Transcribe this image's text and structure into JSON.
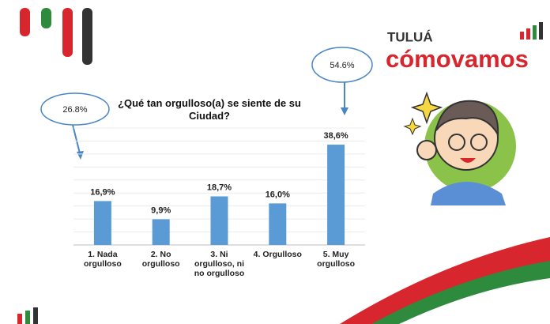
{
  "brand": {
    "city": "TULUÁ",
    "name": "cómovamos"
  },
  "chart_data": {
    "type": "bar",
    "title": "¿Qué tan orgulloso(a) se siente de su Ciudad?",
    "categories": [
      "1. Nada orgulloso",
      "2. No orgulloso",
      "3. Ni orgulloso, ni no orgulloso",
      "4. Orgulloso",
      "5. Muy orgulloso"
    ],
    "values": [
      16.9,
      9.9,
      18.7,
      16.0,
      38.6
    ],
    "value_labels": [
      "16,9%",
      "9,9%",
      "18,7%",
      "16,0%",
      "38,6%"
    ],
    "color": "#5b9bd5",
    "ylim": [
      0,
      45
    ],
    "yticks": [
      0,
      5,
      10,
      15,
      20,
      25,
      30,
      35,
      40,
      45
    ],
    "grid": true,
    "annotations": [
      "26.8%",
      "54.6%"
    ]
  }
}
